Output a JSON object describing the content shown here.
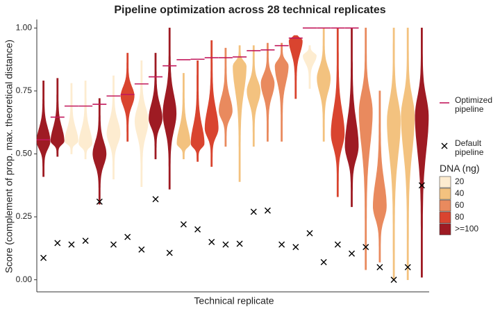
{
  "chart_data": {
    "type": "violin",
    "title": "Pipeline optimization across 28 technical replicates",
    "x_label": "Technical replicate",
    "y_label": "Score (complement of prop. max. theoretical distance)",
    "categories": [
      null,
      null,
      null,
      null,
      null,
      null,
      null,
      null,
      null,
      null,
      null,
      null,
      null,
      null,
      null,
      null,
      null,
      null,
      null,
      null,
      null,
      null,
      null,
      null,
      null,
      null,
      null,
      null
    ],
    "ylim": [
      -0.048,
      1.034
    ],
    "yticks": [
      {
        "value": 0,
        "label": "0.00"
      },
      {
        "value": 0.25,
        "label": "0.25"
      },
      {
        "value": 0.5,
        "label": "0.50"
      },
      {
        "value": 0.75,
        "label": "0.75"
      },
      {
        "value": 1,
        "label": "1.00"
      }
    ],
    "violins": {
      "min": [
        0.41,
        0.49,
        0.5,
        0.48,
        0.3,
        0.4,
        0.55,
        0.37,
        0.48,
        0.36,
        0.48,
        0.47,
        0.45,
        0.53,
        0.39,
        0.53,
        0.55,
        0.55,
        0.72,
        0.76,
        0.55,
        0.33,
        0.29,
        0.04,
        0.07,
        0.0,
        0.0,
        0.01
      ],
      "mode": [
        0.55,
        0.55,
        0.55,
        0.54,
        0.5,
        0.58,
        0.73,
        0.63,
        0.64,
        0.66,
        0.54,
        0.54,
        0.6,
        0.67,
        0.85,
        0.75,
        0.78,
        0.85,
        0.95,
        0.89,
        0.8,
        0.58,
        0.53,
        0.67,
        0.29,
        0.63,
        0.65,
        0.65
      ],
      "max": [
        0.79,
        0.8,
        0.78,
        0.79,
        0.72,
        0.81,
        0.9,
        0.87,
        0.9,
        1.0,
        0.82,
        0.87,
        0.95,
        0.92,
        0.93,
        0.93,
        0.94,
        0.94,
        0.97,
        0.93,
        1.0,
        1.0,
        1.0,
        1.0,
        0.75,
        1.0,
        1.0,
        1.0
      ],
      "colors": [
        "#9e1b23",
        "#9e1b23",
        "#fdecd0",
        "#fdecd0",
        "#9e1b23",
        "#fdecd0",
        "#d9442f",
        "#fdecd0",
        "#9e1b23",
        "#9e1b23",
        "#f3c27f",
        "#d9442f",
        "#d9442f",
        "#e98a5e",
        "#f3c27f",
        "#f3c27f",
        "#e98a5e",
        "#e98a5e",
        "#d9442f",
        "#fdecd0",
        "#f3c27f",
        "#d9442f",
        "#9e1b23",
        "#e98a5e",
        "#e98a5e",
        "#f3c27f",
        "#f3c27f",
        "#9e1b23"
      ]
    },
    "series": [
      {
        "name": "Optimized pipeline",
        "color": "#c2185b",
        "marker": "line",
        "values": [
          0.556,
          0.646,
          0.69,
          0.69,
          0.697,
          0.73,
          0.736,
          0.778,
          0.806,
          0.85,
          0.874,
          0.876,
          0.882,
          0.882,
          0.885,
          0.91,
          0.913,
          0.93,
          0.96,
          1.0,
          1.0,
          1.0,
          1.0,
          null,
          null,
          null,
          null,
          null
        ]
      },
      {
        "name": "Default pipeline",
        "color": "#000000",
        "marker": "x",
        "values": [
          0.087,
          0.146,
          0.14,
          0.155,
          0.31,
          0.14,
          0.17,
          0.12,
          0.32,
          0.107,
          0.22,
          0.2,
          0.15,
          0.14,
          0.143,
          0.27,
          0.275,
          0.14,
          0.13,
          0.185,
          0.07,
          0.14,
          0.104,
          0.13,
          0.05,
          0.0,
          0.05,
          0.375
        ]
      }
    ],
    "legend": {
      "title": "DNA (ng)",
      "entries": [
        {
          "label": "20",
          "color": "#fdecd0"
        },
        {
          "label": "40",
          "color": "#f3c27f"
        },
        {
          "label": "60",
          "color": "#e98a5e"
        },
        {
          "label": "80",
          "color": "#d9442f"
        },
        {
          "label": ">=100",
          "color": "#9e1b23"
        }
      ]
    }
  }
}
